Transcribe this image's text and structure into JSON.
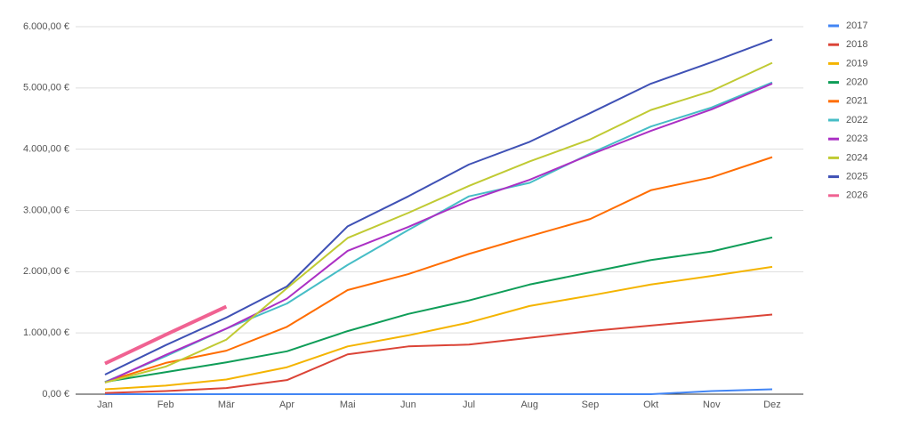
{
  "chart_data": {
    "type": "line",
    "categories": [
      "Jan",
      "Feb",
      "Mär",
      "Apr",
      "Mai",
      "Jun",
      "Jul",
      "Aug",
      "Sep",
      "Okt",
      "Nov",
      "Dez"
    ],
    "ylim": [
      0,
      6000
    ],
    "yticks": [
      {
        "value": 0,
        "label": "0,00 €"
      },
      {
        "value": 1000,
        "label": "1.000,00 €"
      },
      {
        "value": 2000,
        "label": "2.000,00 €"
      },
      {
        "value": 3000,
        "label": "3.000,00 €"
      },
      {
        "value": 4000,
        "label": "4.000,00 €"
      },
      {
        "value": 5000,
        "label": "5.000,00 €"
      },
      {
        "value": 6000,
        "label": "6.000,00 €"
      }
    ],
    "grid": true,
    "legend": "right",
    "series": [
      {
        "name": "2017",
        "color": "#4285f4",
        "width": 2,
        "values": [
          0,
          0,
          0,
          0,
          0,
          0,
          0,
          0,
          0,
          0,
          50,
          80
        ]
      },
      {
        "name": "2018",
        "color": "#db4437",
        "width": 2,
        "values": [
          20,
          50,
          100,
          230,
          650,
          780,
          810,
          920,
          1030,
          1120,
          1210,
          1300
        ]
      },
      {
        "name": "2019",
        "color": "#f4b400",
        "width": 2,
        "values": [
          80,
          140,
          240,
          440,
          780,
          960,
          1170,
          1440,
          1610,
          1790,
          1930,
          2080
        ]
      },
      {
        "name": "2020",
        "color": "#0f9d58",
        "width": 2,
        "values": [
          200,
          360,
          520,
          700,
          1030,
          1310,
          1530,
          1790,
          1990,
          2190,
          2330,
          2560
        ]
      },
      {
        "name": "2021",
        "color": "#ff6d01",
        "width": 2,
        "values": [
          200,
          510,
          710,
          1100,
          1700,
          1960,
          2290,
          2580,
          2860,
          3330,
          3540,
          3870
        ]
      },
      {
        "name": "2022",
        "color": "#46bdc6",
        "width": 2,
        "values": [
          200,
          620,
          1070,
          1480,
          2110,
          2680,
          3230,
          3450,
          3930,
          4370,
          4680,
          5090
        ]
      },
      {
        "name": "2023",
        "color": "#ab30c4",
        "width": 2,
        "values": [
          190,
          640,
          1070,
          1560,
          2340,
          2730,
          3160,
          3500,
          3910,
          4300,
          4650,
          5070
        ]
      },
      {
        "name": "2024",
        "color": "#c0ca33",
        "width": 2,
        "values": [
          190,
          450,
          890,
          1730,
          2550,
          2960,
          3400,
          3800,
          4160,
          4640,
          4950,
          5410
        ]
      },
      {
        "name": "2025",
        "color": "#3f51b5",
        "width": 2,
        "values": [
          320,
          800,
          1250,
          1760,
          2740,
          3230,
          3750,
          4120,
          4590,
          5070,
          5420,
          5790
        ]
      },
      {
        "name": "2026",
        "color": "#f06292",
        "width": 4,
        "values": [
          500,
          970,
          1430,
          null,
          null,
          null,
          null,
          null,
          null,
          null,
          null,
          null
        ]
      }
    ]
  }
}
